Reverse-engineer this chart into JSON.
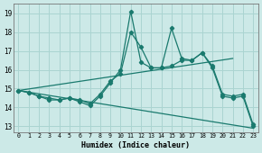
{
  "title": "",
  "xlabel": "Humidex (Indice chaleur)",
  "xlim": [
    -0.5,
    23.5
  ],
  "ylim": [
    12.7,
    19.5
  ],
  "yticks": [
    13,
    14,
    15,
    16,
    17,
    18,
    19
  ],
  "xticks": [
    0,
    1,
    2,
    3,
    4,
    5,
    6,
    7,
    8,
    9,
    10,
    11,
    12,
    13,
    14,
    15,
    16,
    17,
    18,
    19,
    20,
    21,
    22,
    23
  ],
  "bg_color": "#cce9e7",
  "grid_color": "#aad4d1",
  "line_color": "#1a7a6e",
  "lines": [
    {
      "x": [
        0,
        1,
        2,
        3,
        4,
        5,
        6,
        7,
        8,
        9,
        10,
        11,
        12,
        13,
        14,
        15,
        16,
        17,
        18,
        19,
        20,
        21,
        22,
        23
      ],
      "y": [
        14.9,
        14.8,
        14.6,
        14.4,
        14.4,
        14.5,
        14.3,
        14.1,
        14.6,
        15.3,
        16.0,
        19.1,
        16.4,
        16.1,
        16.1,
        18.2,
        16.6,
        16.5,
        16.9,
        16.1,
        14.6,
        14.5,
        14.6,
        13.0
      ],
      "marker": true
    },
    {
      "x": [
        0,
        1,
        2,
        3,
        4,
        5,
        6,
        7,
        8,
        9,
        10,
        11,
        12,
        13,
        14,
        15,
        16,
        17,
        18,
        19,
        20,
        21,
        22,
        23
      ],
      "y": [
        14.9,
        14.8,
        14.6,
        14.5,
        14.4,
        14.5,
        14.4,
        14.2,
        14.7,
        15.4,
        15.8,
        18.0,
        17.2,
        16.1,
        16.1,
        16.2,
        16.5,
        16.5,
        16.9,
        16.2,
        14.7,
        14.6,
        14.7,
        13.1
      ],
      "marker": true
    },
    {
      "x": [
        0,
        21
      ],
      "y": [
        14.9,
        16.6
      ],
      "marker": false
    },
    {
      "x": [
        0,
        23
      ],
      "y": [
        14.9,
        12.9
      ],
      "marker": false
    }
  ]
}
